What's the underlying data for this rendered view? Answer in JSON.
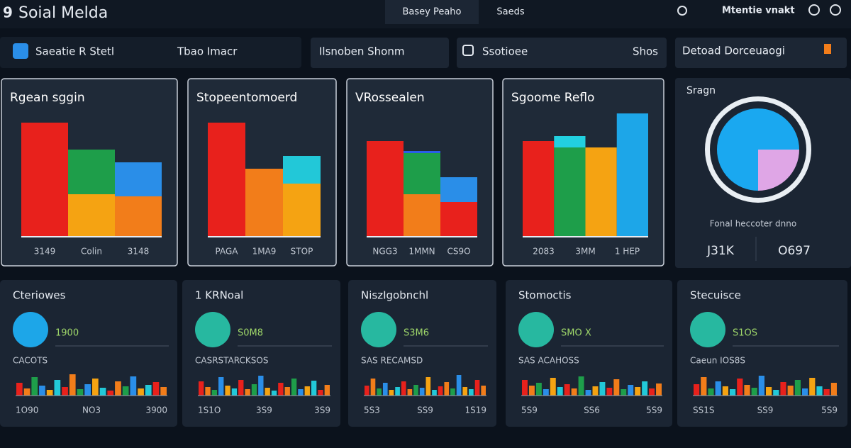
{
  "header": {
    "logo": "9",
    "title": "Soial Melda",
    "tabs": [
      "Basey Peaho",
      "Saeds"
    ],
    "user": "Mtentie vnakt"
  },
  "toolbar": {
    "items": [
      "Saeatie R Stetl",
      "Tbao Imacr",
      "Ilsnoben Shonm",
      "Ssotioee",
      "Shos",
      "Detoad Dorceuaogi"
    ]
  },
  "cards": [
    {
      "title": "Rgean sggin",
      "ylim": [
        0,
        200
      ],
      "labels": [
        "3149",
        "Colin",
        "3148"
      ],
      "columns": [
        {
          "segments": [
            {
              "value": 160,
              "color": "#e8211c"
            }
          ]
        },
        {
          "segments": [
            {
              "value": 59,
              "color": "#f5a312"
            },
            {
              "value": 63,
              "color": "#1e9e4a"
            }
          ]
        },
        {
          "segments": [
            {
              "value": 56,
              "color": "#f27d1a"
            },
            {
              "value": 48,
              "color": "#2a8ee8"
            }
          ]
        }
      ]
    },
    {
      "title": "Stopeentomoerd",
      "ylim": [
        0,
        200
      ],
      "labels": [
        "PAGA",
        "1MA9",
        "STOP"
      ],
      "columns": [
        {
          "segments": [
            {
              "value": 160,
              "color": "#e8211c"
            }
          ]
        },
        {
          "segments": [
            {
              "value": 95,
              "color": "#f27d1a"
            }
          ]
        },
        {
          "segments": [
            {
              "value": 74,
              "color": "#f5a312"
            },
            {
              "value": 39,
              "color": "#22c8d8"
            }
          ]
        }
      ]
    },
    {
      "title": "VRossealen",
      "ylim": [
        0,
        200
      ],
      "labels": [
        "NGG3",
        "1MMN",
        "CS9O"
      ],
      "columns": [
        {
          "segments": [
            {
              "value": 134,
              "color": "#e8211c"
            }
          ]
        },
        {
          "segments": [
            {
              "value": 59,
              "color": "#f27d1a"
            },
            {
              "value": 58,
              "color": "#1e9e4a"
            },
            {
              "value": 3,
              "color": "#2a5ee8"
            }
          ]
        },
        {
          "segments": [
            {
              "value": 48,
              "color": "#e8211c"
            },
            {
              "value": 35,
              "color": "#2a8ee8"
            }
          ]
        }
      ]
    },
    {
      "title": "Sgoome Reflo",
      "ylim": [
        0,
        200
      ],
      "labels": [
        "2083",
        "3MM",
        "1 HEP"
      ],
      "columns": [
        {
          "segments": [
            {
              "value": 134,
              "color": "#e8211c"
            }
          ]
        },
        {
          "segments": [
            {
              "value": 125,
              "color": "#1e9e4a"
            },
            {
              "value": 16,
              "color": "#22d0e0"
            }
          ]
        },
        {
          "segments": [
            {
              "value": 125,
              "color": "#f5a312"
            }
          ]
        },
        {
          "segments": [
            {
              "value": 173,
              "color": "#1da6e8"
            }
          ]
        }
      ]
    }
  ],
  "donut": {
    "title": "Sragn",
    "caption": "Fonal heccoter dnno",
    "stats": [
      "J31K",
      "O697"
    ],
    "values": [
      25,
      75
    ],
    "colors": [
      "#dfa6e6",
      "#1aa8f0"
    ]
  },
  "bottom_cards": [
    {
      "title": "Cteriowes",
      "stat": "1900",
      "sub": "CACOTS",
      "labels": [
        "1O90",
        "NO3",
        "3900"
      ],
      "bars": [
        18,
        10,
        26,
        14,
        8,
        22,
        12,
        30,
        9,
        16,
        24,
        11,
        7,
        20,
        13,
        27,
        10,
        15,
        19,
        12
      ]
    },
    {
      "title": "1 KRNoal",
      "stat": "S0M8",
      "sub": "CASRSTARCKSOS",
      "labels": [
        "1S1O",
        "3S9",
        "3S9"
      ],
      "bars": [
        20,
        12,
        8,
        26,
        14,
        10,
        22,
        9,
        16,
        28,
        11,
        7,
        18,
        12,
        24,
        9,
        13,
        21,
        8,
        15
      ]
    },
    {
      "title": "NiszIgobnchl",
      "stat": "S3M6",
      "sub": "SAS RECAMSD",
      "labels": [
        "5S3",
        "SS9",
        "1S19"
      ],
      "bars": [
        14,
        24,
        10,
        18,
        8,
        12,
        20,
        9,
        15,
        11,
        26,
        8,
        13,
        19,
        10,
        29,
        12,
        9,
        22,
        14
      ]
    },
    {
      "title": "Stomoctis",
      "stat": "SMO X",
      "sub": "SAS ACAHOSS",
      "labels": [
        "5S9",
        "SS6",
        "5S9"
      ],
      "bars": [
        22,
        14,
        18,
        9,
        25,
        12,
        16,
        10,
        27,
        8,
        13,
        19,
        11,
        23,
        9,
        15,
        12,
        20,
        10,
        17
      ]
    },
    {
      "title": "Stecuisce",
      "stat": "S1OS",
      "sub": "Caeun IOS8S",
      "labels": [
        "SS1S",
        "SS9",
        "5S9"
      ],
      "bars": [
        16,
        26,
        10,
        20,
        13,
        9,
        24,
        15,
        11,
        28,
        12,
        8,
        19,
        14,
        22,
        10,
        25,
        13,
        9,
        18
      ]
    }
  ],
  "bar_colors": [
    "#e8211c",
    "#f27d1a",
    "#1e9e4a",
    "#2a8ee8",
    "#f5a312",
    "#22c8d8"
  ]
}
